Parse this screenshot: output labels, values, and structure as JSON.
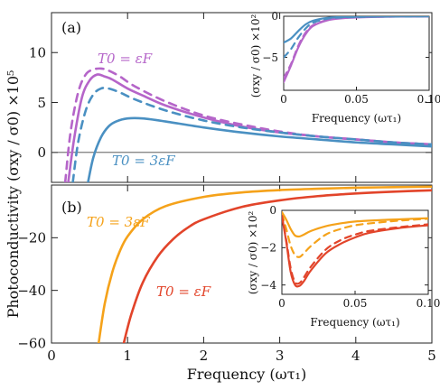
{
  "figure": {
    "ylabel": "Photoconductivity (σxy / σ0) ×10⁵",
    "xlabel": "Frequency (ωτ₁)"
  },
  "chart_data": [
    {
      "panel": "(a)",
      "type": "line",
      "xlim": [
        0,
        5
      ],
      "ylim": [
        -3,
        14
      ],
      "xticks": [
        0,
        1,
        2,
        3,
        4,
        5
      ],
      "yticks": [
        0,
        5,
        10
      ],
      "ytick_labels": [
        "0",
        "5",
        "10"
      ],
      "hline": 0,
      "series": [
        {
          "name": "T0 = εF",
          "color": "#b565c9",
          "style": "solid",
          "x": [
            0.22,
            0.3,
            0.4,
            0.5,
            0.6,
            0.7,
            0.8,
            1.0,
            1.2,
            1.5,
            2.0,
            2.5,
            3.0,
            3.5,
            4.0,
            4.5,
            5.0
          ],
          "y": [
            -3.0,
            1.5,
            5.5,
            7.2,
            7.8,
            7.6,
            7.3,
            6.4,
            5.7,
            4.7,
            3.5,
            2.6,
            2.0,
            1.6,
            1.3,
            1.0,
            0.8
          ]
        },
        {
          "name": "",
          "color": "#b565c9",
          "style": "dashed",
          "x": [
            0.18,
            0.25,
            0.35,
            0.45,
            0.55,
            0.65,
            0.75,
            0.9,
            1.1,
            1.5,
            2.0,
            2.5,
            3.0,
            3.5,
            4.0,
            4.5,
            5.0
          ],
          "y": [
            -3.0,
            2.0,
            6.0,
            7.8,
            8.3,
            8.4,
            8.2,
            7.6,
            6.6,
            5.1,
            3.7,
            2.8,
            2.1,
            1.6,
            1.3,
            1.0,
            0.8
          ]
        },
        {
          "name": "",
          "color": "#4a90c2",
          "style": "dashed",
          "x": [
            0.28,
            0.35,
            0.45,
            0.55,
            0.65,
            0.75,
            0.9,
            1.1,
            1.5,
            2.0,
            2.5,
            3.0,
            3.5,
            4.0,
            4.5,
            5.0
          ],
          "y": [
            -3.0,
            1.0,
            4.2,
            5.8,
            6.4,
            6.4,
            6.0,
            5.3,
            4.2,
            3.2,
            2.5,
            2.0,
            1.6,
            1.3,
            1.0,
            0.8
          ]
        },
        {
          "name": "T0 = 3εF",
          "color": "#4a90c2",
          "style": "solid",
          "x": [
            0.48,
            0.55,
            0.65,
            0.75,
            0.85,
            1.0,
            1.2,
            1.5,
            2.0,
            2.5,
            3.0,
            3.5,
            4.0,
            4.5,
            5.0
          ],
          "y": [
            -3.0,
            -0.5,
            1.5,
            2.6,
            3.1,
            3.4,
            3.4,
            3.1,
            2.5,
            2.0,
            1.6,
            1.3,
            1.0,
            0.8,
            0.6
          ]
        }
      ],
      "annotations": {
        "label_a": "T0 = εF",
        "label_b": "T0 = 3εF"
      },
      "inset": {
        "xlim": [
          0,
          0.1
        ],
        "ylim": [
          -9,
          0
        ],
        "xticks": [
          0,
          0.05,
          0.1
        ],
        "xtick_labels": [
          "0",
          "0.05",
          "0.10"
        ],
        "yticks": [
          0,
          -5
        ],
        "ytick_labels": [
          "0",
          "−5"
        ],
        "xlabel": "Frequency (ωτ₁)",
        "ylabel": "(σxy / σ0) ×10²",
        "series": [
          {
            "color": "#b565c9",
            "style": "solid",
            "x": [
              0.0,
              0.005,
              0.01,
              0.015,
              0.02,
              0.03,
              0.04,
              0.05,
              0.06,
              0.08,
              0.1
            ],
            "y": [
              -8.0,
              -6.0,
              -3.8,
              -2.2,
              -1.2,
              -0.5,
              -0.25,
              -0.15,
              -0.1,
              -0.05,
              -0.03
            ]
          },
          {
            "color": "#b565c9",
            "style": "dashed",
            "x": [
              0.0,
              0.005,
              0.01,
              0.015,
              0.02,
              0.03,
              0.04,
              0.05,
              0.06,
              0.08,
              0.1
            ],
            "y": [
              -7.5,
              -5.8,
              -3.6,
              -2.0,
              -1.1,
              -0.45,
              -0.2,
              -0.12,
              -0.08,
              -0.04,
              -0.02
            ]
          },
          {
            "color": "#4a90c2",
            "style": "dashed",
            "x": [
              0.0,
              0.005,
              0.01,
              0.015,
              0.02,
              0.03,
              0.04,
              0.05,
              0.06,
              0.08,
              0.1
            ],
            "y": [
              -5.0,
              -4.0,
              -2.6,
              -1.5,
              -0.8,
              -0.3,
              -0.15,
              -0.1,
              -0.06,
              -0.03,
              -0.02
            ]
          },
          {
            "color": "#4a90c2",
            "style": "solid",
            "x": [
              0.0,
              0.005,
              0.01,
              0.015,
              0.02,
              0.03,
              0.04,
              0.05,
              0.06,
              0.08,
              0.1
            ],
            "y": [
              -3.2,
              -2.7,
              -1.8,
              -1.0,
              -0.55,
              -0.2,
              -0.1,
              -0.06,
              -0.04,
              -0.02,
              -0.01
            ]
          }
        ]
      }
    },
    {
      "panel": "(b)",
      "type": "line",
      "xlim": [
        0,
        5
      ],
      "ylim": [
        -60,
        0
      ],
      "xticks": [
        0,
        1,
        2,
        3,
        4,
        5
      ],
      "xtick_labels": [
        "0",
        "1",
        "2",
        "3",
        "4",
        "5"
      ],
      "yticks": [
        -60,
        -40,
        -20
      ],
      "ytick_labels": [
        "−60",
        "−40",
        "−20"
      ],
      "series": [
        {
          "name": "T0 = 3εF",
          "color": "#f5a21a",
          "style": "solid",
          "x": [
            0.62,
            0.7,
            0.8,
            0.9,
            1.0,
            1.2,
            1.5,
            2.0,
            2.5,
            3.0,
            3.5,
            4.0,
            4.5,
            5.0
          ],
          "y": [
            -60,
            -45,
            -33,
            -25,
            -19.5,
            -13,
            -8,
            -4.5,
            -2.8,
            -1.9,
            -1.4,
            -1.0,
            -0.8,
            -0.6
          ]
        },
        {
          "name": "T0 = εF",
          "color": "#e2442a",
          "style": "solid",
          "x": [
            0.95,
            1.05,
            1.2,
            1.4,
            1.6,
            1.8,
            2.0,
            2.5,
            3.0,
            3.5,
            4.0,
            4.5,
            5.0
          ],
          "y": [
            -60,
            -49,
            -37,
            -27,
            -20.5,
            -16,
            -13,
            -8.3,
            -5.8,
            -4.2,
            -3.2,
            -2.5,
            -2.0
          ]
        }
      ],
      "annotations": {
        "label_a": "T0 = 3εF",
        "label_b": "T0 = εF"
      },
      "inset": {
        "xlim": [
          0,
          0.1
        ],
        "ylim": [
          -4.5,
          0
        ],
        "xticks": [
          0,
          0.05,
          0.1
        ],
        "xtick_labels": [
          "0",
          "0.05",
          "0.10"
        ],
        "yticks": [
          0,
          -2,
          -4
        ],
        "ytick_labels": [
          "0",
          "−2",
          "−4"
        ],
        "xlabel": "Frequency (ωτ₁)",
        "ylabel": "(σxy / σ0) ×10²",
        "series": [
          {
            "color": "#f5a21a",
            "style": "solid",
            "x": [
              0.0,
              0.003,
              0.006,
              0.009,
              0.012,
              0.015,
              0.02,
              0.03,
              0.04,
              0.05,
              0.06,
              0.08,
              0.1
            ],
            "y": [
              -0.1,
              -0.5,
              -1.0,
              -1.35,
              -1.4,
              -1.3,
              -1.1,
              -0.85,
              -0.7,
              -0.6,
              -0.55,
              -0.48,
              -0.42
            ]
          },
          {
            "color": "#f5a21a",
            "style": "dashed",
            "x": [
              0.0,
              0.003,
              0.006,
              0.009,
              0.012,
              0.015,
              0.02,
              0.03,
              0.04,
              0.05,
              0.06,
              0.08,
              0.1
            ],
            "y": [
              -0.2,
              -1.0,
              -1.9,
              -2.4,
              -2.5,
              -2.3,
              -1.9,
              -1.3,
              -1.0,
              -0.8,
              -0.7,
              -0.55,
              -0.45
            ]
          },
          {
            "color": "#e2442a",
            "style": "dashed",
            "x": [
              0.0,
              0.003,
              0.006,
              0.009,
              0.012,
              0.015,
              0.02,
              0.03,
              0.04,
              0.05,
              0.06,
              0.08,
              0.1
            ],
            "y": [
              -0.3,
              -1.6,
              -3.1,
              -3.85,
              -3.9,
              -3.6,
              -3.0,
              -2.1,
              -1.6,
              -1.3,
              -1.1,
              -0.9,
              -0.75
            ]
          },
          {
            "color": "#e2442a",
            "style": "solid",
            "x": [
              0.0,
              0.003,
              0.006,
              0.009,
              0.012,
              0.015,
              0.02,
              0.03,
              0.04,
              0.05,
              0.06,
              0.08,
              0.1
            ],
            "y": [
              -0.3,
              -1.7,
              -3.3,
              -4.0,
              -4.05,
              -3.8,
              -3.2,
              -2.3,
              -1.8,
              -1.45,
              -1.2,
              -0.95,
              -0.8
            ]
          }
        ]
      }
    }
  ]
}
